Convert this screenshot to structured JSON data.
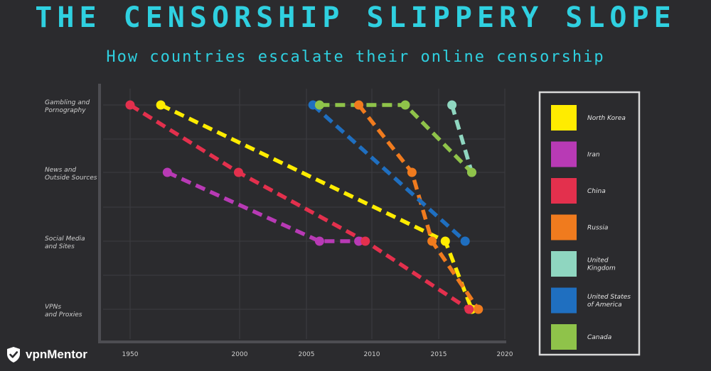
{
  "header": {
    "title": "THE CENSORSHIP SLIPPERY SLOPE",
    "subtitle": "How countries escalate their online censorship"
  },
  "brand": {
    "logo_text": "vpnMentor",
    "logo_icon": "shield-check-icon"
  },
  "chart_data": {
    "type": "line",
    "title": "THE CENSORSHIP SLIPPERY SLOPE",
    "subtitle": "How countries escalate their online censorship",
    "xlim": [
      1950,
      2020
    ],
    "x_ticks": [
      1950,
      2000,
      2005,
      2010,
      2015,
      2020
    ],
    "y_categories": [
      [
        "Gambling and",
        "Pornography"
      ],
      [
        "News and",
        "Outside Sources"
      ],
      [
        "Social Media",
        "and Sites"
      ],
      [
        "VPNs",
        "and Proxies"
      ]
    ],
    "legend_position": "right",
    "series": [
      {
        "name": "North Korea",
        "color": "#ffec00",
        "points": [
          {
            "x": 1964,
            "level": 0
          },
          {
            "x": 2015.5,
            "level": 2
          },
          {
            "x": 2017.5,
            "level": 3
          }
        ]
      },
      {
        "name": "Iran",
        "color": "#b83ab5",
        "points": [
          {
            "x": 1967,
            "level": 1
          },
          {
            "x": 2006,
            "level": 2
          },
          {
            "x": 2009,
            "level": 2
          }
        ]
      },
      {
        "name": "China",
        "color": "#e3304d",
        "points": [
          {
            "x": 1950,
            "level": 0
          },
          {
            "x": 1999.5,
            "level": 1
          },
          {
            "x": 2009.5,
            "level": 2
          },
          {
            "x": 2017.3,
            "level": 3
          }
        ]
      },
      {
        "name": "Russia",
        "color": "#f07b1e",
        "points": [
          {
            "x": 2009,
            "level": 0
          },
          {
            "x": 2013,
            "level": 1
          },
          {
            "x": 2014.5,
            "level": 2
          },
          {
            "x": 2018,
            "level": 3
          }
        ]
      },
      {
        "name": "United Kingdom",
        "color": "#8fd6c0",
        "points": [
          {
            "x": 2016,
            "level": 0
          },
          {
            "x": 2017.5,
            "level": 1
          }
        ]
      },
      {
        "name": "United States of America",
        "color": "#1f6fc0",
        "points": [
          {
            "x": 2005.5,
            "level": 0
          },
          {
            "x": 2017,
            "level": 2
          }
        ]
      },
      {
        "name": "Canada",
        "color": "#8fc34a",
        "points": [
          {
            "x": 2006,
            "level": 0
          },
          {
            "x": 2012.5,
            "level": 0
          },
          {
            "x": 2017.5,
            "level": 1
          }
        ]
      }
    ],
    "legend": [
      {
        "label": [
          "North Korea"
        ],
        "color": "#ffec00"
      },
      {
        "label": [
          "Iran"
        ],
        "color": "#b83ab5"
      },
      {
        "label": [
          "China"
        ],
        "color": "#e3304d"
      },
      {
        "label": [
          "Russia"
        ],
        "color": "#f07b1e"
      },
      {
        "label": [
          "United",
          "Kingdom"
        ],
        "color": "#8fd6c0"
      },
      {
        "label": [
          "United States",
          "of America"
        ],
        "color": "#1f6fc0"
      },
      {
        "label": [
          "Canada"
        ],
        "color": "#8fc34a"
      }
    ]
  }
}
